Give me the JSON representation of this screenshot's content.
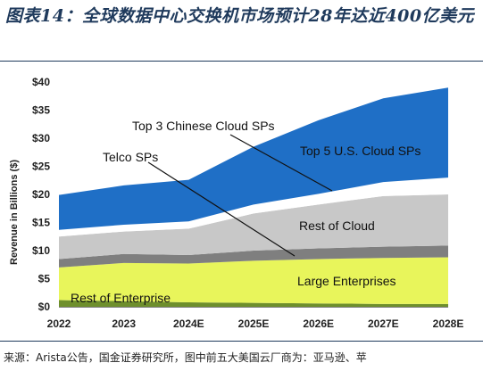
{
  "figure": {
    "title": "图表14：全球数据中心交换机市场预计28年达近400亿美元",
    "source": "来源：Arista公告，国金证券研究所，图中前五大美国云厂商为：亚马逊、苹"
  },
  "chart_data": {
    "type": "area",
    "stacked": true,
    "categories": [
      "2022",
      "2023",
      "2024E",
      "2025E",
      "2026E",
      "2027E",
      "2028E"
    ],
    "ylabel": "Revenue in Billions ($)",
    "ylim": [
      0,
      40
    ],
    "yticks": [
      "$0",
      "$5",
      "$10",
      "$15",
      "$20",
      "$25",
      "$30",
      "$35",
      "$40"
    ],
    "grid": false,
    "series": [
      {
        "name": "Rest of Enterprise",
        "color": "#6e8f2c",
        "values": [
          1.2,
          1.0,
          0.8,
          0.7,
          0.6,
          0.5,
          0.5
        ]
      },
      {
        "name": "Large Enterprises",
        "color": "#e8f55b",
        "values": [
          5.8,
          6.8,
          6.9,
          7.5,
          7.9,
          8.2,
          8.3
        ]
      },
      {
        "name": "",
        "color": "#7f7f7f",
        "values": [
          1.5,
          1.6,
          1.5,
          1.8,
          1.9,
          2.0,
          2.1
        ]
      },
      {
        "name": "Rest of Cloud",
        "color": "#c8c8c8",
        "values": [
          4.0,
          4.0,
          4.7,
          6.6,
          7.8,
          9.0,
          9.1
        ]
      },
      {
        "name": "Telco SPs",
        "color": "#ffffff",
        "values": [
          1.2,
          1.2,
          1.3,
          1.6,
          1.9,
          2.5,
          3.0
        ]
      },
      {
        "name": "Top 5 U.S. Cloud SPs",
        "color": "#1f6fc6",
        "values": [
          6.2,
          7.0,
          7.4,
          10.3,
          13.1,
          14.9,
          16.0
        ]
      }
    ],
    "annotations": [
      {
        "text": "Top 3 Chinese Cloud SPs",
        "x": "2026E",
        "y": 20.7
      },
      {
        "text": "Telco SPs",
        "x": "2026E",
        "y": 19.6
      }
    ]
  }
}
